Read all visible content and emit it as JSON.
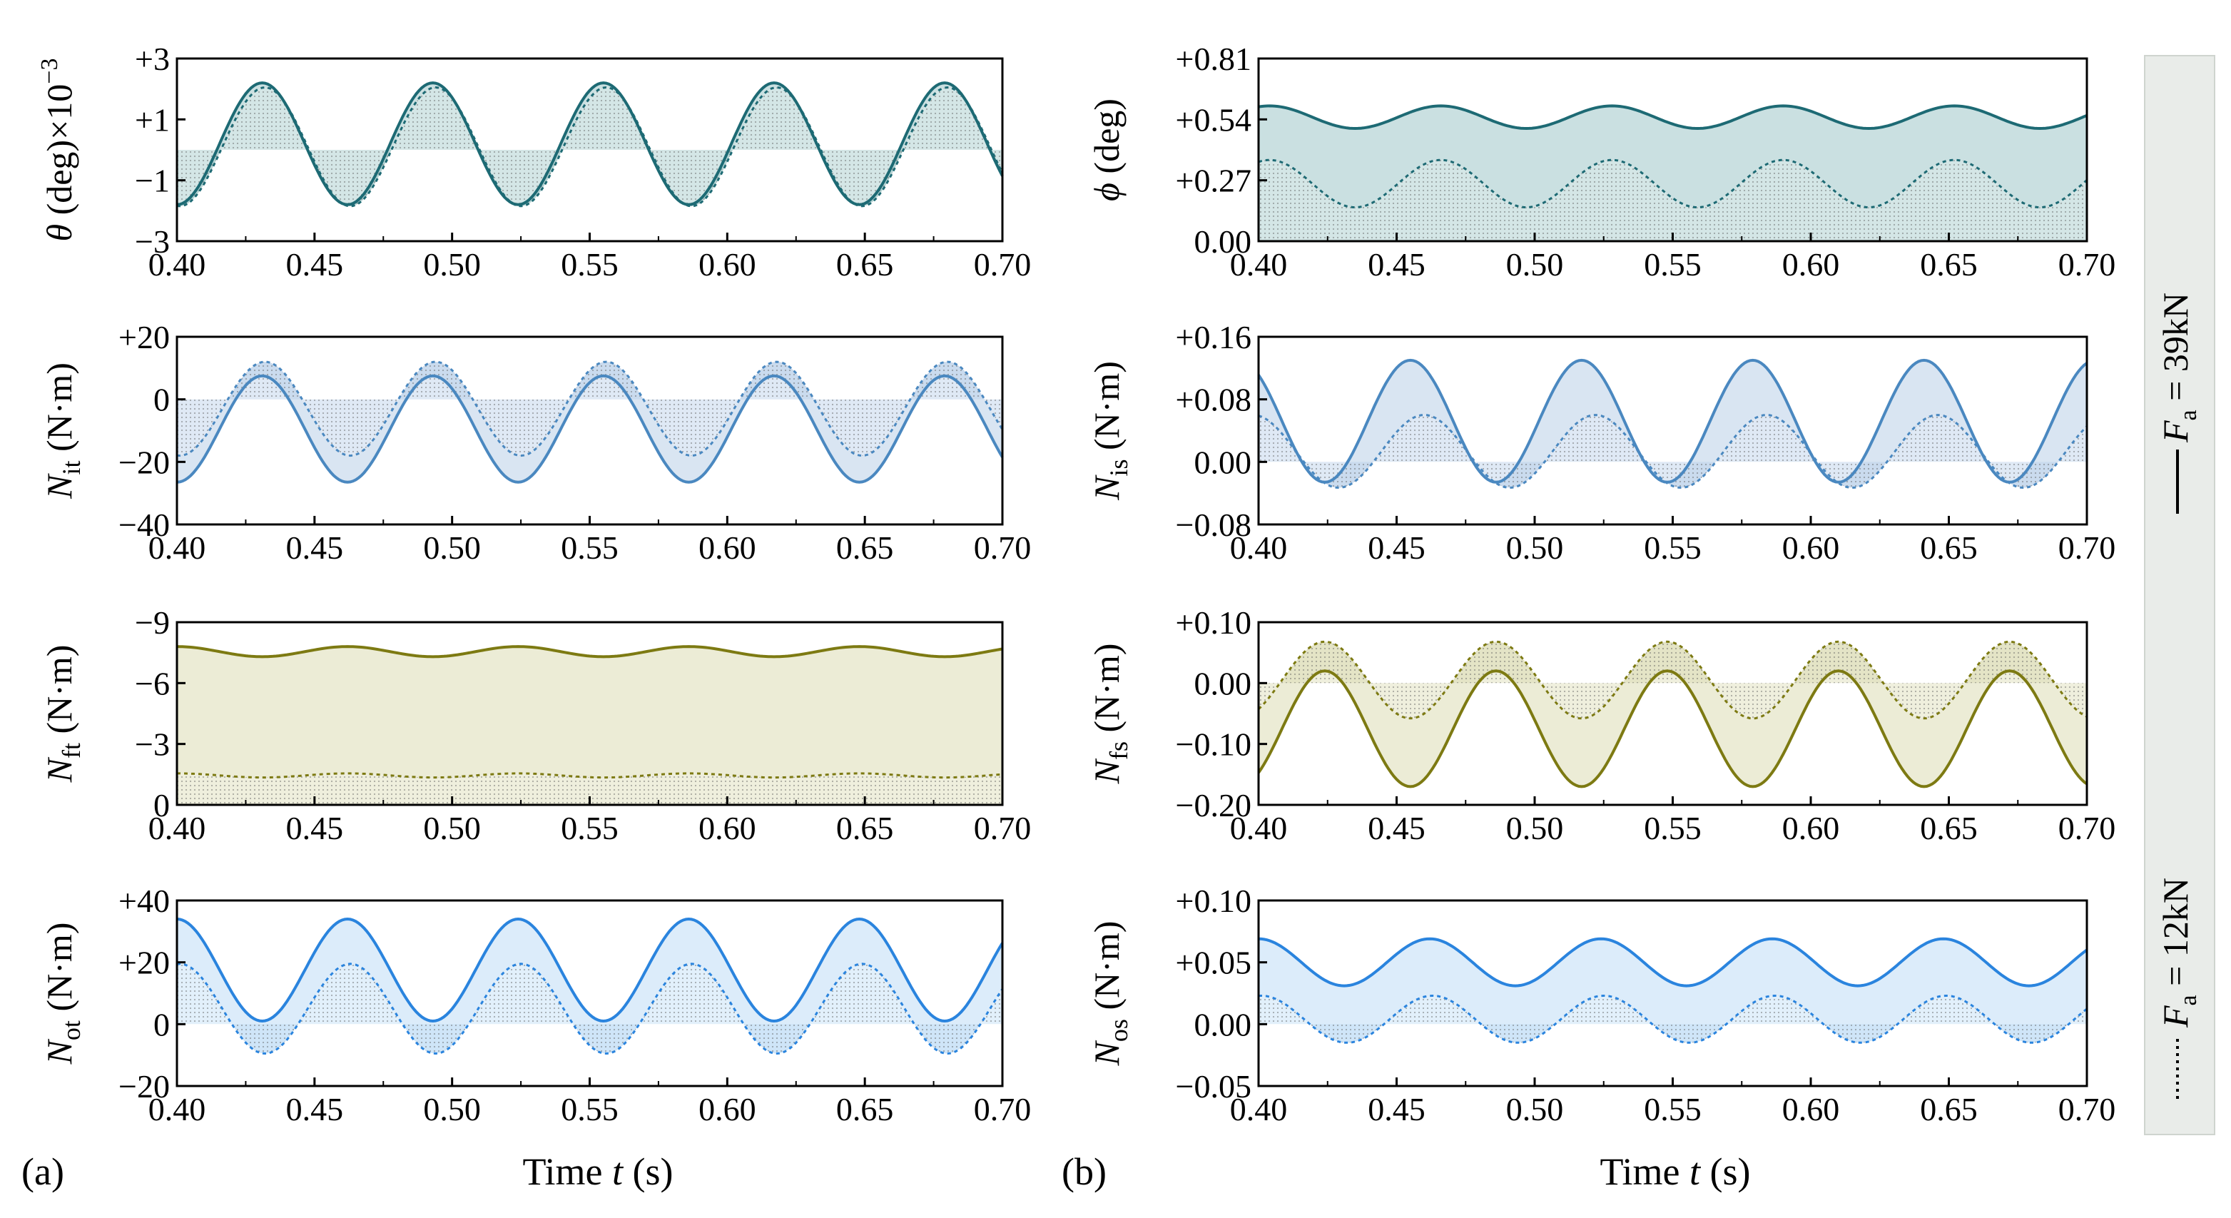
{
  "figure": {
    "x_axis_title": "Time",
    "x_axis_var": "t",
    "x_axis_unit": "(s)",
    "panel_labels": [
      "(a)",
      "(b)"
    ],
    "legend": [
      {
        "label": "F",
        "sub": "a",
        "value": "= 39kN",
        "style": "solid"
      },
      {
        "label": "F",
        "sub": "a",
        "value": "= 12kN",
        "style": "dotted"
      }
    ]
  },
  "chart_data": [
    {
      "id": "theta",
      "type": "line",
      "column": "left",
      "row": 0,
      "ylabel_main": "θ (deg)×10",
      "ylabel_sup": "−3",
      "ylabel_sub": "",
      "ylabel_unit": "",
      "color": "#1d6a74",
      "fill": "#9fc7c8",
      "x": [
        0.4,
        0.7
      ],
      "xticks": [
        "0.40",
        "0.45",
        "0.50",
        "0.55",
        "0.60",
        "0.65",
        "0.70"
      ],
      "ylim": [
        -3,
        3
      ],
      "yinvert": false,
      "yticks": [
        {
          "v": 3,
          "label": "+3"
        },
        {
          "v": 1,
          "label": "+1"
        },
        {
          "v": -1,
          "label": "−1"
        },
        {
          "v": -3,
          "label": "−3"
        }
      ],
      "baseline": 0,
      "series": [
        {
          "name": "F_a = 39kN",
          "style": "solid",
          "offset": 0.2,
          "amp": 2.0,
          "period": 0.062,
          "phase": 0.4155
        },
        {
          "name": "F_a = 12kN",
          "style": "dotted",
          "offset": 0.1,
          "amp": 1.95,
          "period": 0.062,
          "phase": 0.4165
        }
      ]
    },
    {
      "id": "phi",
      "type": "line",
      "column": "right",
      "row": 0,
      "ylabel_main": "ϕ (deg)",
      "ylabel_sup": "",
      "ylabel_sub": "",
      "ylabel_unit": "",
      "color": "#1d6a74",
      "fill": "#9fc7c8",
      "x": [
        0.4,
        0.7
      ],
      "xticks": [
        "0.40",
        "0.45",
        "0.50",
        "0.55",
        "0.60",
        "0.65",
        "0.70"
      ],
      "ylim": [
        0,
        0.81
      ],
      "yinvert": false,
      "yticks": [
        {
          "v": 0.81,
          "label": "+0.81"
        },
        {
          "v": 0.54,
          "label": "+0.54"
        },
        {
          "v": 0.27,
          "label": "+0.27"
        },
        {
          "v": 0,
          "label": "0.00"
        }
      ],
      "baseline": 0,
      "series": [
        {
          "name": "F_a = 39kN",
          "style": "solid",
          "offset": 0.55,
          "amp": 0.05,
          "period": 0.062,
          "phase": 0.4505
        },
        {
          "name": "F_a = 12kN",
          "style": "dotted",
          "offset": 0.255,
          "amp": 0.105,
          "period": 0.062,
          "phase": 0.4505
        }
      ]
    },
    {
      "id": "Nit",
      "type": "line",
      "column": "left",
      "row": 1,
      "ylabel_main": "N",
      "ylabel_sup": "",
      "ylabel_sub": "it",
      "ylabel_unit": " (N·m)",
      "color": "#4a88c0",
      "fill": "#b9cfe8",
      "x": [
        0.4,
        0.7
      ],
      "xticks": [
        "0.40",
        "0.45",
        "0.50",
        "0.55",
        "0.60",
        "0.65",
        "0.70"
      ],
      "ylim": [
        -40,
        20
      ],
      "yinvert": false,
      "yticks": [
        {
          "v": 20,
          "label": "+20"
        },
        {
          "v": 0,
          "label": "0"
        },
        {
          "v": -20,
          "label": "−20"
        },
        {
          "v": -40,
          "label": "−40"
        }
      ],
      "baseline": 0,
      "series": [
        {
          "name": "F_a = 39kN",
          "style": "solid",
          "offset": -9.5,
          "amp": 17,
          "period": 0.062,
          "phase": 0.4155
        },
        {
          "name": "F_a = 12kN",
          "style": "dotted",
          "offset": -3,
          "amp": 15,
          "period": 0.062,
          "phase": 0.4165
        }
      ]
    },
    {
      "id": "Nis",
      "type": "line",
      "column": "right",
      "row": 1,
      "ylabel_main": "N",
      "ylabel_sup": "",
      "ylabel_sub": "is",
      "ylabel_unit": " (N·m)",
      "color": "#4a88c0",
      "fill": "#b9cfe8",
      "x": [
        0.4,
        0.7
      ],
      "xticks": [
        "0.40",
        "0.45",
        "0.50",
        "0.55",
        "0.60",
        "0.65",
        "0.70"
      ],
      "ylim": [
        -0.08,
        0.16
      ],
      "yinvert": false,
      "yticks": [
        {
          "v": 0.16,
          "label": "+0.16"
        },
        {
          "v": 0.08,
          "label": "+0.08"
        },
        {
          "v": 0,
          "label": "0.00"
        },
        {
          "v": -0.08,
          "label": "−0.08"
        }
      ],
      "baseline": 0,
      "series": [
        {
          "name": "F_a = 39kN",
          "style": "solid",
          "offset": 0.052,
          "amp": 0.078,
          "period": 0.062,
          "phase": 0.4395
        },
        {
          "name": "F_a = 12kN",
          "style": "dotted",
          "offset": 0.0135,
          "amp": 0.0465,
          "period": 0.062,
          "phase": 0.4445
        }
      ]
    },
    {
      "id": "Nft",
      "type": "line",
      "column": "left",
      "row": 2,
      "ylabel_main": "N",
      "ylabel_sup": "",
      "ylabel_sub": "ft",
      "ylabel_unit": " (N·m)",
      "color": "#7d7a12",
      "fill": "#dcdcb4",
      "x": [
        0.4,
        0.7
      ],
      "xticks": [
        "0.40",
        "0.45",
        "0.50",
        "0.55",
        "0.60",
        "0.65",
        "0.70"
      ],
      "ylim": [
        0,
        -9
      ],
      "yinvert": true,
      "yticks": [
        {
          "v": -9,
          "label": "−9"
        },
        {
          "v": -6,
          "label": "−6"
        },
        {
          "v": -3,
          "label": "−3"
        },
        {
          "v": 0,
          "label": "0"
        }
      ],
      "baseline": 0,
      "series": [
        {
          "name": "F_a = 39kN",
          "style": "solid",
          "offset": -7.55,
          "amp": 0.25,
          "period": 0.062,
          "phase": 0.4155
        },
        {
          "name": "F_a = 12kN",
          "style": "dotted",
          "offset": -1.45,
          "amp": 0.1,
          "period": 0.062,
          "phase": 0.4155
        }
      ]
    },
    {
      "id": "Nfs",
      "type": "line",
      "column": "right",
      "row": 2,
      "ylabel_main": "N",
      "ylabel_sup": "",
      "ylabel_sub": "fs",
      "ylabel_unit": " (N·m)",
      "color": "#7d7a12",
      "fill": "#dcdcb4",
      "x": [
        0.4,
        0.7
      ],
      "xticks": [
        "0.40",
        "0.45",
        "0.50",
        "0.55",
        "0.60",
        "0.65",
        "0.70"
      ],
      "ylim": [
        -0.2,
        0.1
      ],
      "yinvert": false,
      "yticks": [
        {
          "v": 0.1,
          "label": "+0.10"
        },
        {
          "v": 0,
          "label": "0.00"
        },
        {
          "v": -0.1,
          "label": "−0.10"
        },
        {
          "v": -0.2,
          "label": "−0.20"
        }
      ],
      "baseline": 0,
      "series": [
        {
          "name": "F_a = 39kN",
          "style": "solid",
          "offset": -0.075,
          "amp": 0.095,
          "period": 0.062,
          "phase": 0.4085
        },
        {
          "name": "F_a = 12kN",
          "style": "dotted",
          "offset": 0.005,
          "amp": 0.063,
          "period": 0.062,
          "phase": 0.4085
        }
      ]
    },
    {
      "id": "Not",
      "type": "line",
      "column": "left",
      "row": 3,
      "ylabel_main": "N",
      "ylabel_sup": "",
      "ylabel_sub": "ot",
      "ylabel_unit": " (N·m)",
      "color": "#2a84de",
      "fill": "#bfddf6",
      "x": [
        0.4,
        0.7
      ],
      "xticks": [
        "0.40",
        "0.45",
        "0.50",
        "0.55",
        "0.60",
        "0.65",
        "0.70"
      ],
      "ylim": [
        -20,
        40
      ],
      "yinvert": false,
      "yticks": [
        {
          "v": 40,
          "label": "+40"
        },
        {
          "v": 20,
          "label": "+20"
        },
        {
          "v": 0,
          "label": "0"
        },
        {
          "v": -20,
          "label": "−20"
        }
      ],
      "baseline": 0,
      "series": [
        {
          "name": "F_a = 39kN",
          "style": "solid",
          "offset": 17.5,
          "amp": 16.5,
          "period": 0.062,
          "phase": 0.4465
        },
        {
          "name": "F_a = 12kN",
          "style": "dotted",
          "offset": 5,
          "amp": 14.5,
          "period": 0.062,
          "phase": 0.4475
        }
      ]
    },
    {
      "id": "Nos",
      "type": "line",
      "column": "right",
      "row": 3,
      "ylabel_main": "N",
      "ylabel_sup": "",
      "ylabel_sub": "os",
      "ylabel_unit": " (N·m)",
      "color": "#2a84de",
      "fill": "#bfddf6",
      "x": [
        0.4,
        0.7
      ],
      "xticks": [
        "0.40",
        "0.45",
        "0.50",
        "0.55",
        "0.60",
        "0.65",
        "0.70"
      ],
      "ylim": [
        -0.05,
        0.1
      ],
      "yinvert": false,
      "yticks": [
        {
          "v": 0.1,
          "label": "+0.10"
        },
        {
          "v": 0.05,
          "label": "+0.05"
        },
        {
          "v": 0,
          "label": "0.00"
        },
        {
          "v": -0.05,
          "label": "−0.05"
        }
      ],
      "baseline": 0,
      "series": [
        {
          "name": "F_a = 39kN",
          "style": "solid",
          "offset": 0.05,
          "amp": 0.019,
          "period": 0.062,
          "phase": 0.4465
        },
        {
          "name": "F_a = 12kN",
          "style": "dotted",
          "offset": 0.004,
          "amp": 0.019,
          "period": 0.062,
          "phase": 0.4475
        }
      ]
    }
  ]
}
